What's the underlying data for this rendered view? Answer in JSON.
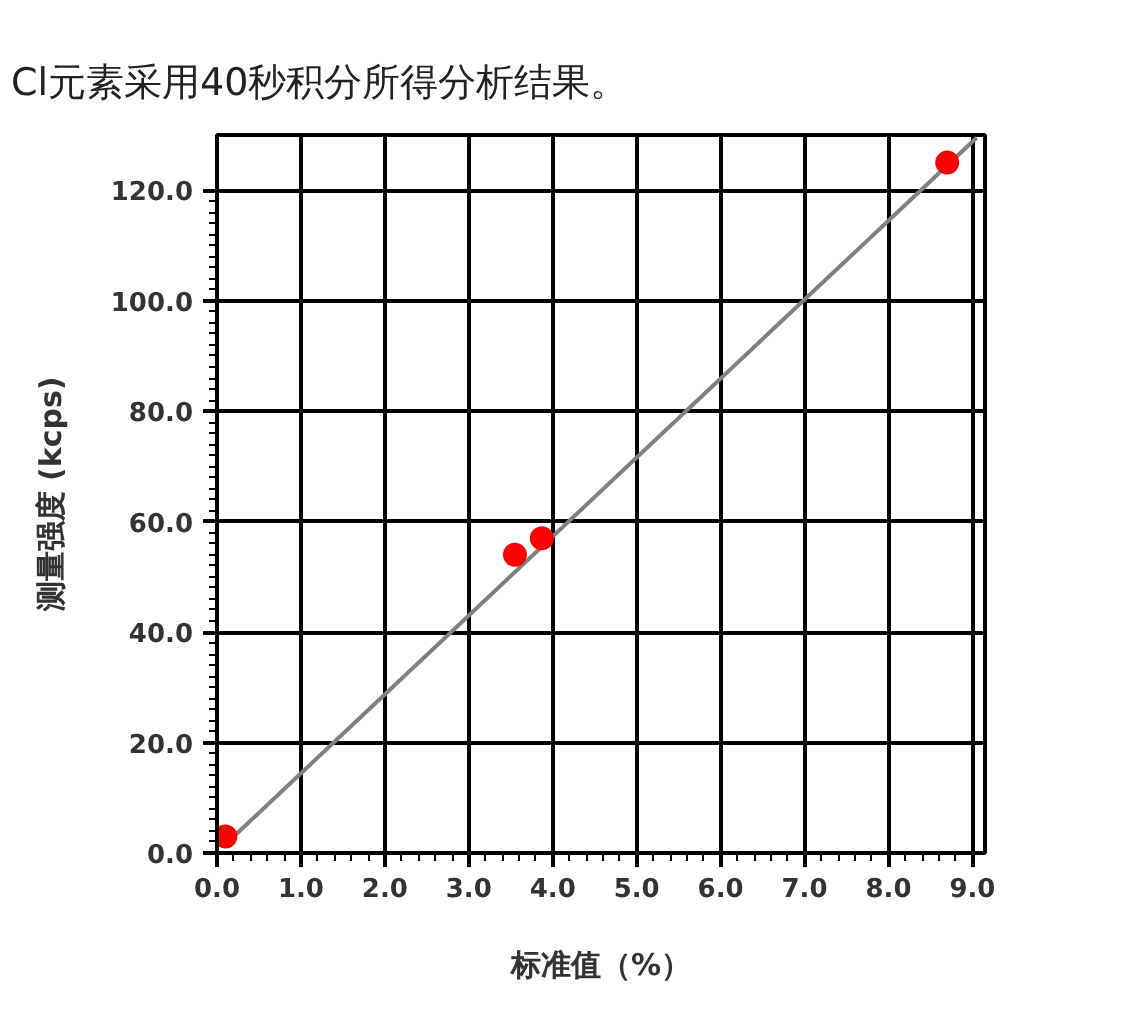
{
  "chart_data": {
    "type": "scatter",
    "title": "Cl元素采用40秒积分所得分析结果。",
    "xlabel": "标准值（%）",
    "ylabel": "测量强度 (kcps)",
    "xlim": [
      0,
      9.15
    ],
    "ylim": [
      0,
      130
    ],
    "xticks": [
      {
        "value": 0,
        "label": "0.0"
      },
      {
        "value": 1,
        "label": "1.0"
      },
      {
        "value": 2,
        "label": "2.0"
      },
      {
        "value": 3,
        "label": "3.0"
      },
      {
        "value": 4,
        "label": "4.0"
      },
      {
        "value": 5,
        "label": "5.0"
      },
      {
        "value": 6,
        "label": "6.0"
      },
      {
        "value": 7,
        "label": "7.0"
      },
      {
        "value": 8,
        "label": "8.0"
      },
      {
        "value": 9,
        "label": "9.0"
      }
    ],
    "yticks": [
      {
        "value": 0,
        "label": "0.0"
      },
      {
        "value": 20,
        "label": "20.0"
      },
      {
        "value": 40,
        "label": "40.0"
      },
      {
        "value": 60,
        "label": "60.0"
      },
      {
        "value": 80,
        "label": "80.0"
      },
      {
        "value": 100,
        "label": "100.0"
      },
      {
        "value": 120,
        "label": "120.0"
      }
    ],
    "grid": true,
    "series": [
      {
        "type": "line",
        "color": "#808080",
        "x": [
          0.2,
          9.05
        ],
        "values": [
          3,
          129.5
        ],
        "marker": "none",
        "line_style": "solid"
      },
      {
        "color": "#ff0000",
        "x": [
          0.1,
          3.55,
          3.87,
          8.7
        ],
        "values": [
          3,
          54,
          57,
          125
        ],
        "marker": "circle"
      }
    ]
  }
}
